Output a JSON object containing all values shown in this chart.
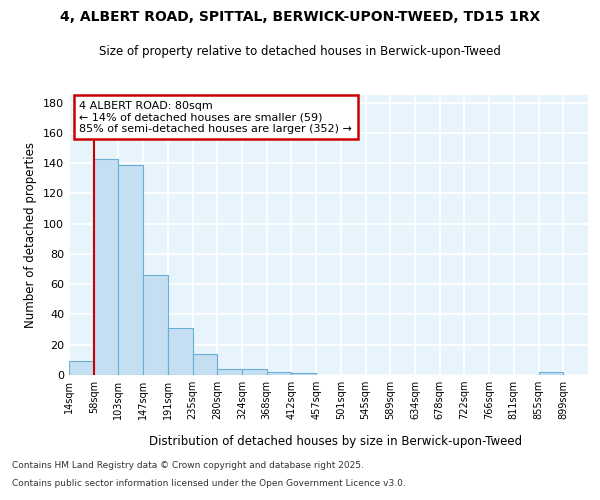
{
  "title1": "4, ALBERT ROAD, SPITTAL, BERWICK-UPON-TWEED, TD15 1RX",
  "title2": "Size of property relative to detached houses in Berwick-upon-Tweed",
  "xlabel": "Distribution of detached houses by size in Berwick-upon-Tweed",
  "ylabel": "Number of detached properties",
  "footnote1": "Contains HM Land Registry data © Crown copyright and database right 2025.",
  "footnote2": "Contains public sector information licensed under the Open Government Licence v3.0.",
  "categories": [
    "14sqm",
    "58sqm",
    "103sqm",
    "147sqm",
    "191sqm",
    "235sqm",
    "280sqm",
    "324sqm",
    "368sqm",
    "412sqm",
    "457sqm",
    "501sqm",
    "545sqm",
    "589sqm",
    "634sqm",
    "678sqm",
    "722sqm",
    "766sqm",
    "811sqm",
    "855sqm",
    "899sqm"
  ],
  "bar_values": [
    9,
    143,
    139,
    66,
    31,
    14,
    4,
    4,
    2,
    1,
    0,
    0,
    0,
    0,
    0,
    0,
    0,
    0,
    0,
    2,
    0
  ],
  "bar_color": "#c5dff2",
  "bar_edge_color": "#6aaed6",
  "background_color": "#e8f4fc",
  "grid_color": "#ffffff",
  "vline_color": "#cc0000",
  "annotation_title": "4 ALBERT ROAD: 80sqm",
  "annotation_line1": "← 14% of detached houses are smaller (59)",
  "annotation_line2": "85% of semi-detached houses are larger (352) →",
  "annotation_box_color": "#cc0000",
  "ylim": [
    0,
    185
  ],
  "yticks": [
    0,
    20,
    40,
    60,
    80,
    100,
    120,
    140,
    160,
    180
  ]
}
